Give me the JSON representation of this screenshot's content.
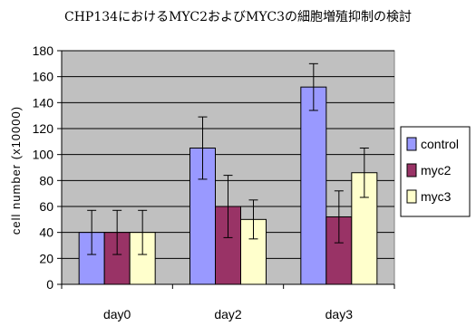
{
  "chart_data": {
    "type": "bar",
    "title": "CHP134におけるMYC2およびMYC3の細胞増殖抑制の検討",
    "xlabel": "",
    "ylabel": "cell number (x10000)",
    "ylim": [
      0,
      180
    ],
    "yticks": [
      0,
      20,
      40,
      60,
      80,
      100,
      120,
      140,
      160,
      180
    ],
    "categories": [
      "day0",
      "day2",
      "day3"
    ],
    "grid": true,
    "legend_position": "right",
    "error_bars": true,
    "series": [
      {
        "name": "control",
        "color": "#9999ff",
        "values": [
          40,
          105,
          152
        ],
        "errors": [
          17,
          24,
          18
        ]
      },
      {
        "name": "myc2",
        "color": "#993366",
        "values": [
          40,
          60,
          52
        ],
        "errors": [
          17,
          24,
          20
        ]
      },
      {
        "name": "myc3",
        "color": "#ffffcc",
        "values": [
          40,
          50,
          86
        ],
        "errors": [
          17,
          15,
          19
        ]
      }
    ],
    "plot_background": "#c0c0c0"
  }
}
